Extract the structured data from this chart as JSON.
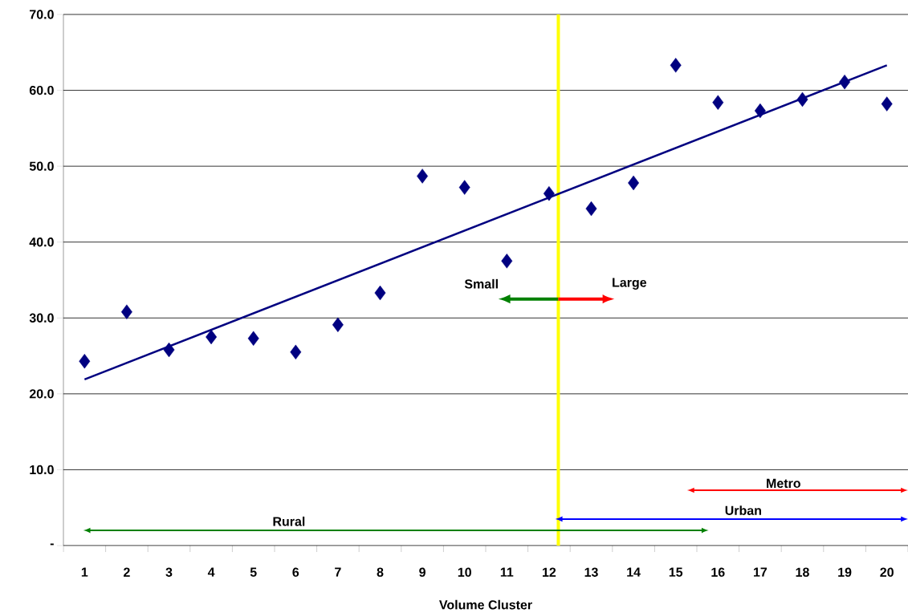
{
  "chart_data": {
    "type": "scatter",
    "xlabel": "Volume Cluster",
    "x": [
      1,
      2,
      3,
      4,
      5,
      6,
      7,
      8,
      9,
      10,
      11,
      12,
      13,
      14,
      15,
      16,
      17,
      18,
      19,
      20
    ],
    "series": [
      {
        "type": "scatter",
        "color": "#000080",
        "marker": "diamond",
        "values": [
          24.3,
          30.8,
          25.8,
          27.5,
          27.3,
          25.5,
          29.1,
          33.3,
          48.7,
          47.2,
          37.5,
          46.4,
          44.4,
          47.8,
          63.3,
          58.4,
          57.3,
          58.8,
          61.1,
          58.2
        ]
      },
      {
        "type": "line",
        "color": "#000080",
        "marker": "none",
        "line_style": "solid",
        "x": [
          1,
          20
        ],
        "values": [
          21.9,
          63.3
        ]
      }
    ],
    "annotations": [
      {
        "text": "Small",
        "x": 12.22,
        "y": 32.5
      },
      {
        "text": "Large",
        "x": 12.22,
        "y": 32.5
      },
      "Rural",
      "Urban",
      "Metro"
    ],
    "xlim": [
      0.5,
      20.5
    ],
    "xticks": [
      1,
      2,
      3,
      4,
      5,
      6,
      7,
      8,
      9,
      10,
      11,
      12,
      13,
      14,
      15,
      16,
      17,
      18,
      19,
      20
    ],
    "ylim": [
      0,
      70
    ],
    "yticks": [
      {
        "value": 0,
        "label": "-"
      },
      {
        "value": 10,
        "label": "10.0"
      },
      {
        "value": 20,
        "label": "20.0"
      },
      {
        "value": 30,
        "label": "30.0"
      },
      {
        "value": 40,
        "label": "40.0"
      },
      {
        "value": 50,
        "label": "50.0"
      },
      {
        "value": 60,
        "label": "60.0"
      },
      {
        "value": 70,
        "label": "70.0"
      }
    ],
    "grid": "y",
    "legend": false,
    "ref_lines": [
      {
        "axis": "x",
        "value": 12.22,
        "color": "#ffff00"
      }
    ]
  }
}
